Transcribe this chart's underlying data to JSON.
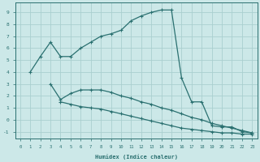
{
  "xlabel": "Humidex (Indice chaleur)",
  "bg_color": "#cce8e8",
  "line_color": "#2a7070",
  "grid_color": "#aacfcf",
  "xlim": [
    -0.5,
    23.5
  ],
  "ylim": [
    -1.6,
    9.8
  ],
  "xticks": [
    0,
    1,
    2,
    3,
    4,
    5,
    6,
    7,
    8,
    9,
    10,
    11,
    12,
    13,
    14,
    15,
    16,
    17,
    18,
    19,
    20,
    21,
    22,
    23
  ],
  "yticks": [
    -1,
    0,
    1,
    2,
    3,
    4,
    5,
    6,
    7,
    8,
    9
  ],
  "curve1_x": [
    1,
    2,
    3,
    4,
    5,
    6,
    7,
    8,
    9,
    10,
    11,
    12,
    13,
    14,
    15,
    16,
    17,
    18,
    19,
    20,
    21,
    22,
    23
  ],
  "curve1_y": [
    4.0,
    5.3,
    6.5,
    5.3,
    5.3,
    6.0,
    6.5,
    7.0,
    7.2,
    7.5,
    8.3,
    8.7,
    9.0,
    9.2,
    9.2,
    3.5,
    1.5,
    1.5,
    -0.5,
    -0.6,
    -0.6,
    -1.0,
    -1.1
  ],
  "curve2_x": [
    3,
    4,
    5,
    6,
    7,
    8,
    9,
    10,
    11,
    12,
    13,
    14,
    15,
    16,
    17,
    18,
    19,
    20,
    21,
    22,
    23
  ],
  "curve2_y": [
    3.0,
    1.7,
    2.2,
    2.5,
    2.5,
    2.5,
    2.3,
    2.0,
    1.8,
    1.5,
    1.3,
    1.0,
    0.8,
    0.5,
    0.2,
    0.0,
    -0.3,
    -0.5,
    -0.7,
    -0.9,
    -1.1
  ],
  "curve3_x": [
    4,
    5,
    6,
    7,
    8,
    9,
    10,
    11,
    12,
    13,
    14,
    15,
    16,
    17,
    18,
    19,
    20,
    21,
    22,
    23
  ],
  "curve3_y": [
    1.5,
    1.3,
    1.1,
    1.0,
    0.9,
    0.7,
    0.5,
    0.3,
    0.1,
    -0.1,
    -0.3,
    -0.5,
    -0.7,
    -0.8,
    -0.9,
    -1.0,
    -1.1,
    -1.1,
    -1.2,
    -1.2
  ]
}
